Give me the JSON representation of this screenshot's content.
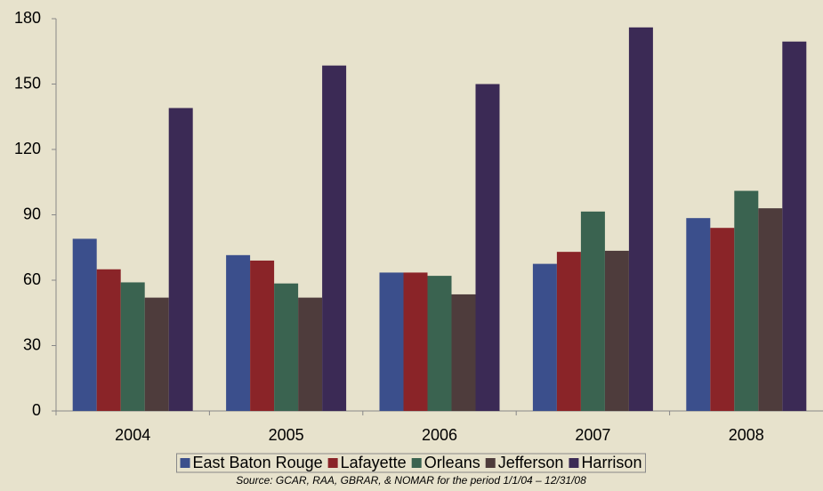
{
  "chart_data": {
    "type": "bar",
    "categories": [
      "2004",
      "2005",
      "2006",
      "2007",
      "2008"
    ],
    "series": [
      {
        "name": "East Baton Rouge",
        "color": "#3b4f8c",
        "values": [
          79,
          71.5,
          63.5,
          67.5,
          88.5
        ]
      },
      {
        "name": "Lafayette",
        "color": "#8a2428",
        "values": [
          65,
          69,
          63.5,
          73,
          84
        ]
      },
      {
        "name": "Orleans",
        "color": "#3a6350",
        "values": [
          59,
          58.5,
          62,
          91.5,
          101
        ]
      },
      {
        "name": "Jefferson",
        "color": "#4e3c3c",
        "values": [
          52,
          52,
          53.5,
          73.5,
          93
        ]
      },
      {
        "name": "Harrison",
        "color": "#3b2a55",
        "values": [
          139,
          158.5,
          150,
          176,
          169.5
        ]
      }
    ],
    "ylim": [
      0,
      180
    ],
    "yticks": [
      0,
      30,
      60,
      90,
      120,
      150,
      180
    ],
    "grid": false,
    "legend": "bottom",
    "source": "Source: GCAR, RAA, GBRAR, & NOMAR for the period 1/1/04 – 12/31/08"
  }
}
